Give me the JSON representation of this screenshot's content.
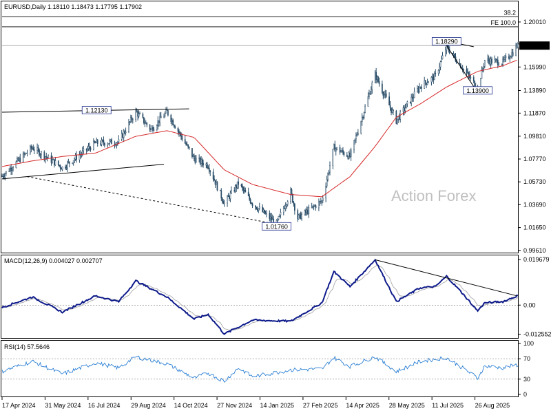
{
  "colors": {
    "background": "#ffffff",
    "candle_up": "#2a4d68",
    "candle_down": "#2a4d68",
    "ma_line": "#d62728",
    "macd_line": "#0d1a8a",
    "signal_line": "#a0a0a0",
    "rsi_line": "#2a7fd4",
    "trendline": "#000000",
    "level_line": "#808080",
    "grid": "#d8d8d8"
  },
  "chart_data": [
    {
      "type": "candlestick",
      "title": "EURUSD,Daily  1.18110 1.18473 1.17795 1.17902",
      "last_price_label": "1.17902",
      "watermark": "Action Forex",
      "ylim": [
        0.9935,
        1.2185
      ],
      "y_ticks": [
        "1.20010",
        "1.18050",
        "1.15990",
        "1.13890",
        "1.11870",
        "1.09810",
        "1.07770",
        "1.05730",
        "1.03690",
        "1.01650",
        "0.99610"
      ],
      "x_tick_labels": [
        "17 Apr 2024",
        "31 May 2024",
        "16 Jul 2024",
        "29 Aug 2024",
        "14 Oct 2024",
        "27 Nov 2024",
        "14 Jan 2025",
        "27 Feb 2025",
        "14 Apr 2025",
        "28 May 2025",
        "11 Jul 2025",
        "26 Aug 2025"
      ],
      "levels": [
        {
          "label": "38.2",
          "value": 1.2047
        },
        {
          "label": "FE 100.0",
          "value": 1.1958
        }
      ],
      "annotations": [
        {
          "label": "1.12130",
          "value": 1.1213,
          "date": "2024-07-18"
        },
        {
          "label": "1.01760",
          "value": 1.0176,
          "date": "2025-01-13"
        },
        {
          "label": "1.18290",
          "value": 1.1829,
          "date": "2025-07-01"
        },
        {
          "label": "1.13900",
          "value": 1.139,
          "date": "2025-08-01"
        }
      ],
      "trendlines": [
        {
          "from": {
            "date": "2024-04-15",
            "value": 1.1195
          },
          "to": {
            "date": "2024-10-18",
            "value": 1.1225
          },
          "style": "solid"
        },
        {
          "from": {
            "date": "2024-04-15",
            "value": 1.06
          },
          "to": {
            "date": "2024-09-23",
            "value": 1.073
          },
          "style": "solid"
        },
        {
          "from": {
            "date": "2024-05-10",
            "value": 1.062
          },
          "to": {
            "date": "2025-01-13",
            "value": 1.0195
          },
          "style": "dashed"
        },
        {
          "from": {
            "date": "2025-07-01",
            "value": 1.1829
          },
          "to": {
            "date": "2025-07-28",
            "value": 1.178
          },
          "style": "solid"
        },
        {
          "from": {
            "date": "2025-07-01",
            "value": 1.179
          },
          "to": {
            "date": "2025-08-01",
            "value": 1.137
          },
          "style": "solid"
        }
      ],
      "ohlc_anchors": [
        {
          "date": "2024-04-15",
          "close": 1.0625
        },
        {
          "date": "2024-05-15",
          "close": 1.088
        },
        {
          "date": "2024-06-14",
          "close": 1.07
        },
        {
          "date": "2024-07-17",
          "close": 1.092
        },
        {
          "date": "2024-08-09",
          "close": 1.093
        },
        {
          "date": "2024-08-26",
          "close": 1.12
        },
        {
          "date": "2024-09-10",
          "close": 1.104
        },
        {
          "date": "2024-09-26",
          "close": 1.12
        },
        {
          "date": "2024-10-23",
          "close": 1.078
        },
        {
          "date": "2024-11-06",
          "close": 1.072
        },
        {
          "date": "2024-11-22",
          "close": 1.038
        },
        {
          "date": "2024-12-06",
          "close": 1.056
        },
        {
          "date": "2024-12-20",
          "close": 1.038
        },
        {
          "date": "2025-01-13",
          "close": 1.02
        },
        {
          "date": "2025-01-27",
          "close": 1.048
        },
        {
          "date": "2025-02-03",
          "close": 1.025
        },
        {
          "date": "2025-02-27",
          "close": 1.04
        },
        {
          "date": "2025-03-11",
          "close": 1.088
        },
        {
          "date": "2025-03-27",
          "close": 1.08
        },
        {
          "date": "2025-04-21",
          "close": 1.153
        },
        {
          "date": "2025-05-12",
          "close": 1.112
        },
        {
          "date": "2025-06-05",
          "close": 1.143
        },
        {
          "date": "2025-06-20",
          "close": 1.152
        },
        {
          "date": "2025-07-01",
          "close": 1.178
        },
        {
          "date": "2025-07-17",
          "close": 1.159
        },
        {
          "date": "2025-08-01",
          "close": 1.141
        },
        {
          "date": "2025-08-08",
          "close": 1.166
        },
        {
          "date": "2025-08-26",
          "close": 1.164
        },
        {
          "date": "2025-09-05",
          "close": 1.173
        },
        {
          "date": "2025-09-09",
          "close": 1.179
        }
      ],
      "ma_anchors": [
        {
          "date": "2024-04-15",
          "value": 1.071
        },
        {
          "date": "2024-05-15",
          "value": 1.076
        },
        {
          "date": "2024-06-14",
          "value": 1.08
        },
        {
          "date": "2024-07-17",
          "value": 1.083
        },
        {
          "date": "2024-08-26",
          "value": 1.098
        },
        {
          "date": "2024-09-26",
          "value": 1.103
        },
        {
          "date": "2024-10-23",
          "value": 1.097
        },
        {
          "date": "2024-11-22",
          "value": 1.068
        },
        {
          "date": "2024-12-20",
          "value": 1.055
        },
        {
          "date": "2025-01-27",
          "value": 1.046
        },
        {
          "date": "2025-02-27",
          "value": 1.044
        },
        {
          "date": "2025-03-27",
          "value": 1.062
        },
        {
          "date": "2025-04-21",
          "value": 1.089
        },
        {
          "date": "2025-05-12",
          "value": 1.115
        },
        {
          "date": "2025-06-05",
          "value": 1.127
        },
        {
          "date": "2025-07-01",
          "value": 1.142
        },
        {
          "date": "2025-08-01",
          "value": 1.156
        },
        {
          "date": "2025-08-26",
          "value": 1.161
        },
        {
          "date": "2025-09-09",
          "value": 1.166
        }
      ]
    },
    {
      "type": "line",
      "title": "MACD(12,26,9) 0.004027 0.002707",
      "ylim": [
        -0.0145,
        0.0215
      ],
      "y_ticks": [
        "0.019679",
        "0.00",
        "-0.012552"
      ],
      "zero_line": true,
      "macd_anchors": [
        {
          "date": "2024-04-15",
          "value": -0.001
        },
        {
          "date": "2024-05-15",
          "value": 0.0035
        },
        {
          "date": "2024-06-14",
          "value": -0.003
        },
        {
          "date": "2024-07-17",
          "value": 0.004
        },
        {
          "date": "2024-08-09",
          "value": 0.0015
        },
        {
          "date": "2024-08-26",
          "value": 0.0105
        },
        {
          "date": "2024-09-26",
          "value": 0.0035
        },
        {
          "date": "2024-10-23",
          "value": -0.006
        },
        {
          "date": "2024-11-06",
          "value": -0.004
        },
        {
          "date": "2024-11-22",
          "value": -0.0125
        },
        {
          "date": "2024-12-20",
          "value": -0.0065
        },
        {
          "date": "2025-01-27",
          "value": -0.007
        },
        {
          "date": "2025-02-27",
          "value": 0.001
        },
        {
          "date": "2025-03-11",
          "value": 0.0145
        },
        {
          "date": "2025-03-27",
          "value": 0.008
        },
        {
          "date": "2025-04-21",
          "value": 0.0196
        },
        {
          "date": "2025-05-12",
          "value": 0.0015
        },
        {
          "date": "2025-06-05",
          "value": 0.0075
        },
        {
          "date": "2025-06-20",
          "value": 0.008
        },
        {
          "date": "2025-07-01",
          "value": 0.0125
        },
        {
          "date": "2025-07-17",
          "value": 0.005
        },
        {
          "date": "2025-08-01",
          "value": -0.0025
        },
        {
          "date": "2025-08-08",
          "value": 0.001
        },
        {
          "date": "2025-08-26",
          "value": 0.0015
        },
        {
          "date": "2025-09-09",
          "value": 0.004
        }
      ],
      "trendline": {
        "from": {
          "date": "2025-04-21",
          "value": 0.0196
        },
        "to": {
          "date": "2025-09-09",
          "value": 0.004
        }
      }
    },
    {
      "type": "line",
      "title": "RSI(14) 57.5646",
      "ylim": [
        0,
        100
      ],
      "y_ticks": [
        "100",
        "70",
        "30",
        "0"
      ],
      "levels": [
        70,
        30
      ],
      "rsi_anchors": [
        {
          "date": "2024-04-15",
          "value": 45
        },
        {
          "date": "2024-05-15",
          "value": 65
        },
        {
          "date": "2024-06-14",
          "value": 40
        },
        {
          "date": "2024-07-17",
          "value": 62
        },
        {
          "date": "2024-08-09",
          "value": 52
        },
        {
          "date": "2024-08-26",
          "value": 74
        },
        {
          "date": "2024-09-26",
          "value": 60
        },
        {
          "date": "2024-10-23",
          "value": 32
        },
        {
          "date": "2024-11-06",
          "value": 42
        },
        {
          "date": "2024-11-22",
          "value": 26
        },
        {
          "date": "2024-12-06",
          "value": 52
        },
        {
          "date": "2024-12-20",
          "value": 35
        },
        {
          "date": "2025-01-27",
          "value": 48
        },
        {
          "date": "2025-02-27",
          "value": 50
        },
        {
          "date": "2025-03-11",
          "value": 72
        },
        {
          "date": "2025-03-27",
          "value": 55
        },
        {
          "date": "2025-04-21",
          "value": 74
        },
        {
          "date": "2025-05-12",
          "value": 45
        },
        {
          "date": "2025-06-05",
          "value": 65
        },
        {
          "date": "2025-07-01",
          "value": 72
        },
        {
          "date": "2025-07-17",
          "value": 52
        },
        {
          "date": "2025-08-01",
          "value": 32
        },
        {
          "date": "2025-08-08",
          "value": 56
        },
        {
          "date": "2025-08-26",
          "value": 52
        },
        {
          "date": "2025-09-09",
          "value": 58
        }
      ]
    }
  ]
}
